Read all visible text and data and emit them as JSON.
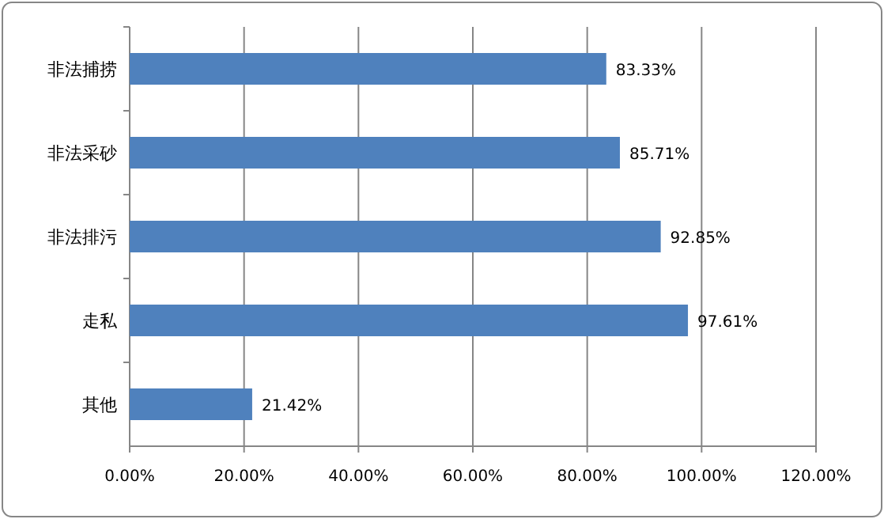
{
  "chart_data": {
    "type": "bar",
    "orientation": "horizontal",
    "categories": [
      "非法捕捞",
      "非法采砂",
      "非法排污",
      "走私",
      "其他"
    ],
    "values": [
      83.33,
      85.71,
      92.85,
      97.61,
      21.42
    ],
    "value_labels": [
      "83.33%",
      "85.71%",
      "92.85%",
      "97.61%",
      "21.42%"
    ],
    "color": "#4f81bd",
    "xlim": [
      0,
      120
    ],
    "xticks": [
      {
        "value": 0,
        "label": "0.00%"
      },
      {
        "value": 20,
        "label": "20.00%"
      },
      {
        "value": 40,
        "label": "40.00%"
      },
      {
        "value": 60,
        "label": "60.00%"
      },
      {
        "value": 80,
        "label": "80.00%"
      },
      {
        "value": 100,
        "label": "100.00%"
      },
      {
        "value": 120,
        "label": "120.00%"
      }
    ],
    "grid": "x"
  }
}
